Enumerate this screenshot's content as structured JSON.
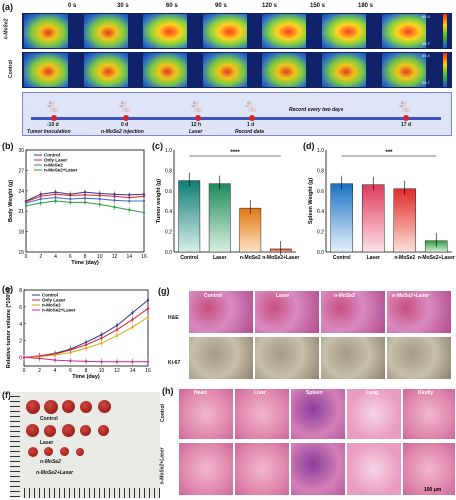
{
  "panel_a": {
    "label": "(a)",
    "times": [
      "0 s",
      "30 s",
      "60 s",
      "90 s",
      "120 s",
      "150 s",
      "180 s"
    ],
    "row1": "n-MoSe2",
    "row2": "Control",
    "scale_top": "65.4",
    "scale_bot": "26.7",
    "timeline": [
      "-10 d",
      "0 d",
      "12 h",
      "1 d",
      "17 d"
    ],
    "timeline_sub": [
      "Tumor Inoculation",
      "n-MoSe2 injection",
      "Laser",
      "Record data",
      "Record every two days"
    ]
  },
  "panel_b": {
    "label": "(b)",
    "ylabel": "Body Weight (g)",
    "xlabel": "Time (day)"
  },
  "panel_c": {
    "label": "(c)",
    "ylabel": "Tumor weight (g)",
    "sig": "****"
  },
  "panel_d": {
    "label": "(d)",
    "ylabel": "Spleen Weight (g)",
    "sig": "***"
  },
  "panel_e": {
    "label": "(e)",
    "ylabel": "Relative tumor volume (*100%)",
    "xlabel": "Time (day)"
  },
  "panel_f": {
    "label": "(f)",
    "groups": [
      "Control",
      "Laser",
      "n-MoSe2",
      "n-MoSe2+Laser"
    ]
  },
  "panel_g": {
    "label": "(g)",
    "cols": [
      "Control",
      "Laser",
      "n-MoSe2",
      "n-MoSe2+Laser"
    ],
    "rows": [
      "H&E",
      "Ki-67"
    ]
  },
  "panel_h": {
    "label": "(h)",
    "cols": [
      "Heart",
      "Liver",
      "Spleen",
      "Lung",
      "Kindly"
    ],
    "rows": [
      "Control",
      "n-MoSe2+Laser"
    ],
    "scale": "100 μm"
  },
  "chart_data": [
    {
      "type": "line",
      "title": "",
      "xlabel": "Time (day)",
      "ylabel": "Body Weight (g)",
      "x": [
        0,
        2,
        4,
        6,
        8,
        10,
        12,
        14,
        16
      ],
      "ylim": [
        15,
        30
      ],
      "series": [
        {
          "name": "Control",
          "color": "#2a3a8f",
          "values": [
            22.5,
            23.5,
            23.8,
            23.5,
            23.8,
            23.6,
            23.5,
            23.4,
            23.5
          ]
        },
        {
          "name": "Only Laser",
          "color": "#d8252e",
          "values": [
            22.4,
            23.2,
            23.5,
            23.3,
            23.4,
            23.3,
            23.2,
            23.0,
            23.2
          ]
        },
        {
          "name": "n-MoSe2",
          "color": "#3f6bc4",
          "values": [
            22.2,
            22.8,
            23.0,
            22.8,
            22.9,
            22.8,
            22.6,
            22.5,
            22.5
          ]
        },
        {
          "name": "n-MoSe2+Laser",
          "color": "#2e9b3f",
          "values": [
            21.8,
            22.2,
            22.5,
            22.3,
            22.3,
            22.0,
            21.6,
            21.2,
            20.8
          ]
        }
      ]
    },
    {
      "type": "bar",
      "xlabel": "",
      "ylabel": "Tumor weight (g)",
      "categories": [
        "Control",
        "Laser",
        "n-MoSe2",
        "n-MoSe2+Laser"
      ],
      "values": [
        0.7,
        0.67,
        0.43,
        0.03
      ],
      "ylim": [
        0,
        1.0
      ]
    },
    {
      "type": "bar",
      "xlabel": "",
      "ylabel": "Spleen Weight (g)",
      "categories": [
        "Control",
        "Laser",
        "n-MoSe2",
        "n-MoSe2+Laser"
      ],
      "values": [
        0.67,
        0.66,
        0.62,
        0.11
      ],
      "ylim": [
        0,
        1.0
      ]
    },
    {
      "type": "line",
      "xlabel": "Time (day)",
      "ylabel": "Relative tumor volume (*100%)",
      "x": [
        0,
        2,
        4,
        6,
        8,
        10,
        12,
        14,
        16
      ],
      "ylim": [
        -1,
        8
      ],
      "series": [
        {
          "name": "Control",
          "color": "#2a3a8f",
          "values": [
            0,
            0.2,
            0.5,
            1.0,
            1.8,
            2.7,
            3.8,
            5.3,
            6.8
          ]
        },
        {
          "name": "Only Laser",
          "color": "#d8252e",
          "values": [
            0,
            0.2,
            0.4,
            0.9,
            1.5,
            2.3,
            3.3,
            4.5,
            5.8
          ]
        },
        {
          "name": "n-MoSe2",
          "color": "#d9a81a",
          "values": [
            0,
            0.1,
            0.3,
            0.6,
            1.1,
            1.7,
            2.6,
            3.6,
            4.8
          ]
        },
        {
          "name": "n-MoSe2+Laser",
          "color": "#d9258f",
          "values": [
            0,
            -0.1,
            -0.3,
            -0.4,
            -0.45,
            -0.5,
            -0.5,
            -0.5,
            -0.5
          ]
        }
      ]
    }
  ]
}
